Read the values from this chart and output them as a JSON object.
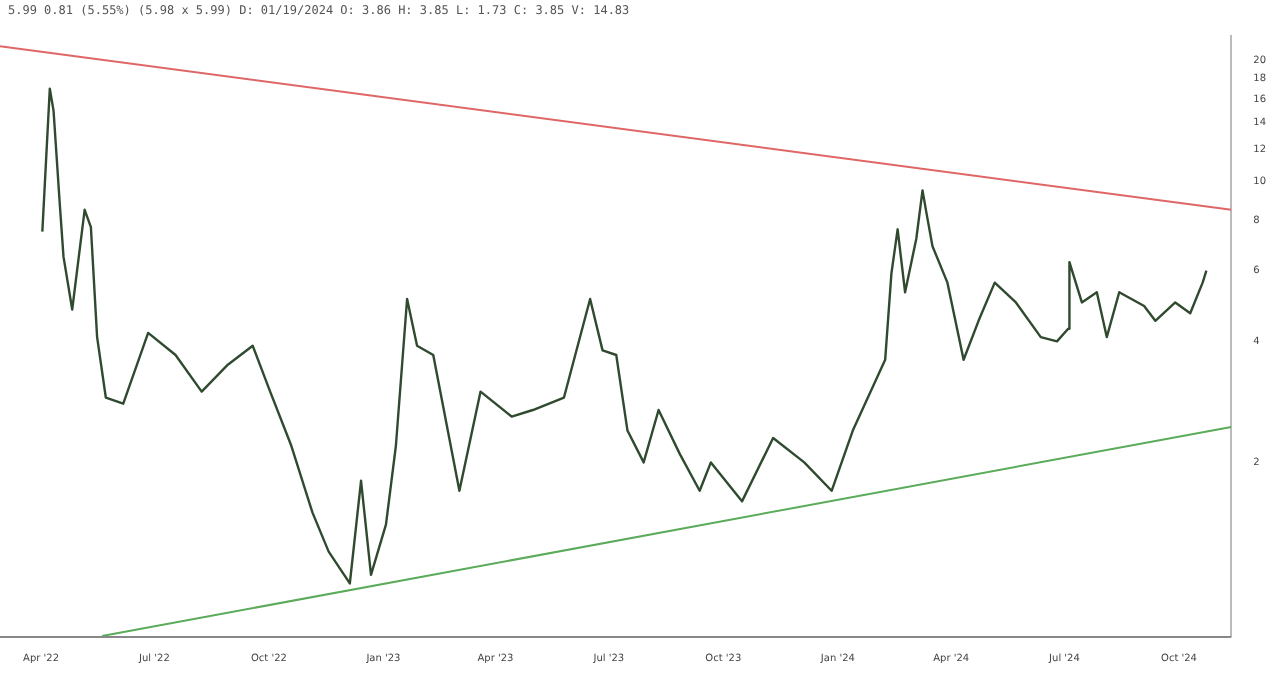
{
  "chart_data": {
    "type": "line",
    "annotations": [
      "5.99 0.81 (5.55%) (5.98 x 5.99) D: 01/19/2024 O: 3.86 H: 3.85 L: 1.73 C: 3.85 V: 14.83"
    ],
    "log": "y",
    "grid": false,
    "legend": false,
    "marker": "none",
    "line_style": "solid",
    "xlim": [
      "2022-02-27",
      "2024-11-12"
    ],
    "ylim": [
      0.74,
      23
    ],
    "xticks": [
      {
        "value": "2022-04-01",
        "label": "Apr '22"
      },
      {
        "value": "2022-07-01",
        "label": "Jul '22"
      },
      {
        "value": "2022-10-01",
        "label": "Oct '22"
      },
      {
        "value": "2023-01-01",
        "label": "Jan '23"
      },
      {
        "value": "2023-04-01",
        "label": "Apr '23"
      },
      {
        "value": "2023-07-01",
        "label": "Jul '23"
      },
      {
        "value": "2023-10-01",
        "label": "Oct '23"
      },
      {
        "value": "2024-01-01",
        "label": "Jan '24"
      },
      {
        "value": "2024-04-01",
        "label": "Apr '24"
      },
      {
        "value": "2024-07-01",
        "label": "Jul '24"
      },
      {
        "value": "2024-10-01",
        "label": "Oct '24"
      }
    ],
    "yticks": [
      2,
      4,
      6,
      8,
      10,
      12,
      14,
      16,
      18,
      20
    ],
    "series": [
      {
        "color": "#2f4a2f",
        "x": [
          "2022-04-02",
          "2022-04-08",
          "2022-04-11",
          "2022-04-16",
          "2022-04-19",
          "2022-04-26",
          "2022-05-06",
          "2022-05-11",
          "2022-05-16",
          "2022-05-23",
          "2022-06-06",
          "2022-06-26",
          "2022-07-18",
          "2022-08-08",
          "2022-08-29",
          "2022-09-18",
          "2022-10-02",
          "2022-10-19",
          "2022-11-05",
          "2022-11-18",
          "2022-12-05",
          "2022-12-14",
          "2022-12-22",
          "2023-01-03",
          "2023-01-11",
          "2023-01-20",
          "2023-01-28",
          "2023-02-10",
          "2023-03-03",
          "2023-03-20",
          "2023-04-14",
          "2023-05-01",
          "2023-05-26",
          "2023-06-16",
          "2023-06-26",
          "2023-07-07",
          "2023-07-16",
          "2023-07-29",
          "2023-08-10",
          "2023-08-27",
          "2023-09-12",
          "2023-09-21",
          "2023-10-16",
          "2023-11-10",
          "2023-12-05",
          "2023-12-27",
          "2024-01-13",
          "2024-02-08",
          "2024-02-13",
          "2024-02-18",
          "2024-02-24",
          "2024-03-04",
          "2024-03-09",
          "2024-03-12",
          "2024-03-17",
          "2024-03-29",
          "2024-04-11",
          "2024-04-23",
          "2024-05-06",
          "2024-05-23",
          "2024-06-12",
          "2024-06-25",
          "2024-07-04",
          "2024-07-05",
          "2024-07-15",
          "2024-07-27",
          "2024-08-04",
          "2024-08-14",
          "2024-09-03",
          "2024-09-12",
          "2024-09-28",
          "2024-10-10",
          "2024-10-20",
          "2024-10-23"
        ],
        "values": [
          7.5,
          17,
          15,
          8.8,
          6.5,
          4.8,
          8.5,
          7.7,
          4.1,
          2.9,
          2.8,
          4.2,
          3.7,
          3.0,
          3.5,
          3.9,
          3.0,
          2.2,
          1.5,
          1.2,
          1.0,
          1.8,
          1.05,
          1.4,
          2.2,
          5.1,
          3.9,
          3.7,
          1.7,
          3.0,
          2.6,
          2.7,
          2.9,
          5.1,
          3.8,
          3.7,
          2.4,
          2.0,
          2.7,
          2.1,
          1.7,
          2.0,
          1.6,
          2.3,
          2.0,
          1.7,
          2.4,
          3.6,
          5.9,
          7.6,
          5.3,
          7.2,
          9.5,
          8.4,
          6.9,
          5.6,
          3.6,
          4.5,
          5.6,
          5.0,
          4.1,
          4.0,
          4.3,
          6.3,
          5.0,
          5.3,
          4.1,
          5.3,
          4.9,
          4.5,
          5.0,
          4.7,
          5.6,
          6.0
        ]
      },
      {
        "type": "line",
        "color": "#e06666",
        "x": [
          "2022-02-27",
          "2024-11-12"
        ],
        "values": [
          21.7,
          8.5
        ]
      },
      {
        "type": "line",
        "color": "#5aab5a",
        "x": [
          "2022-05-20",
          "2024-11-12"
        ],
        "values": [
          0.74,
          2.45
        ]
      }
    ]
  }
}
